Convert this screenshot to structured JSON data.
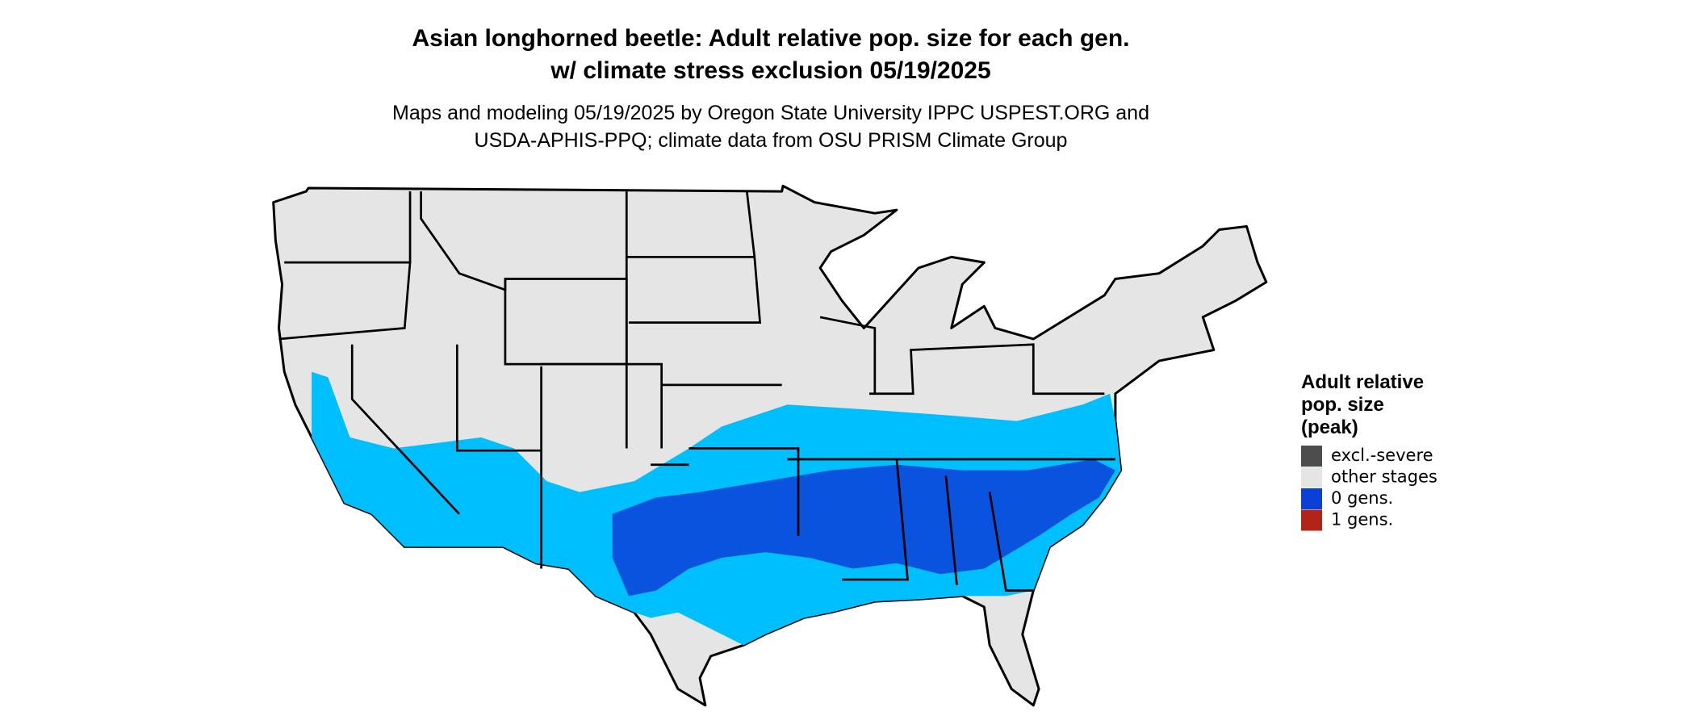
{
  "header": {
    "title": [
      "Asian longhorned beetle: Adult relative pop. size for each gen.",
      "w/ climate stress exclusion 05/19/2025"
    ],
    "subtitle": [
      "Maps and modeling 05/19/2025 by Oregon State University IPPC USPEST.ORG and",
      "USDA-APHIS-PPQ; climate data from OSU PRISM Climate Group"
    ]
  },
  "legend": {
    "title": [
      "Adult relative",
      "pop. size",
      "(peak)"
    ],
    "items": [
      {
        "label": "excl.-severe",
        "color": "#4d4d4d"
      },
      {
        "label": "other stages",
        "color": "#e5e5e5"
      },
      {
        "label": "0 gens.",
        "color": "#0a3fd8"
      },
      {
        "label": "1 gens.",
        "color": "#b22418"
      }
    ]
  }
}
